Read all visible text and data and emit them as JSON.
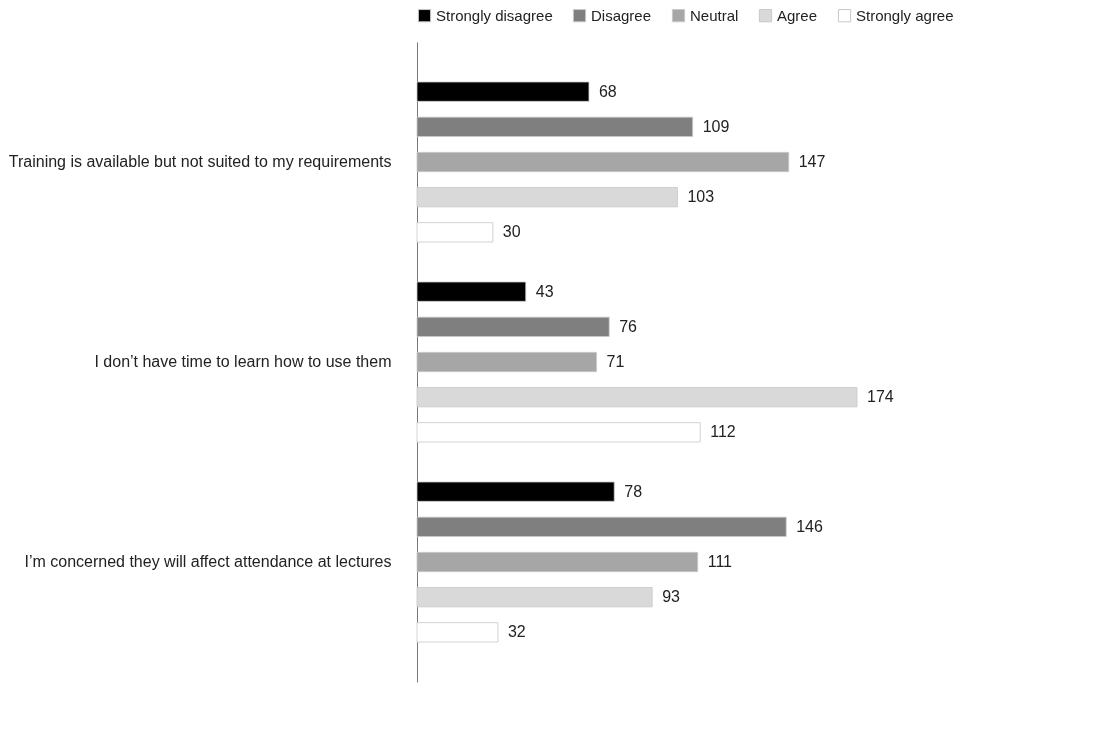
{
  "chart_data": {
    "type": "bar",
    "orientation": "horizontal",
    "categories": [
      "Training is available but not suited to my requirements",
      "I don’t have time to learn how to use them",
      "I’m concerned they will affect attendance at lectures"
    ],
    "series": [
      {
        "name": "Strongly disagree",
        "color": "#000000",
        "values": [
          68,
          43,
          78
        ]
      },
      {
        "name": "Disagree",
        "color": "#7f7f7f",
        "values": [
          109,
          76,
          146
        ]
      },
      {
        "name": "Neutral",
        "color": "#a6a6a6",
        "values": [
          147,
          71,
          111
        ]
      },
      {
        "name": "Agree",
        "color": "#d9d9d9",
        "values": [
          103,
          174,
          93
        ]
      },
      {
        "name": "Strongly agree",
        "color": "#ffffff",
        "values": [
          30,
          112,
          32
        ]
      }
    ],
    "data_labels": true,
    "legend": "top",
    "grid": false
  }
}
